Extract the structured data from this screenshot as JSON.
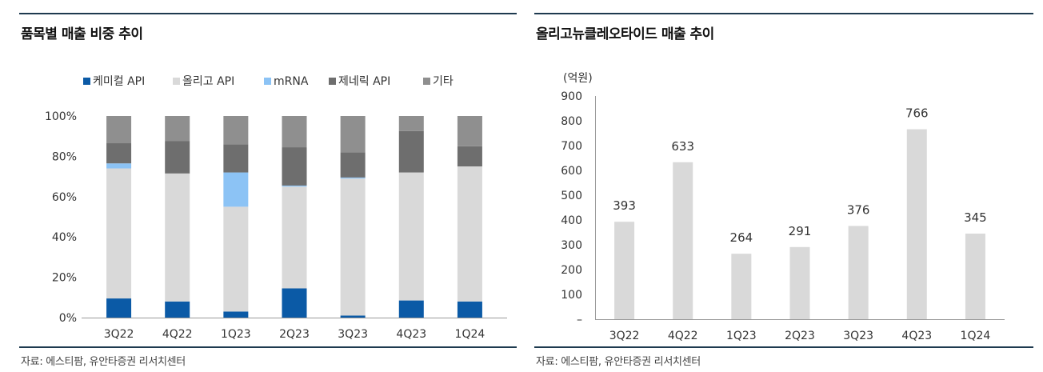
{
  "left": {
    "title": "품목별 매출 비중 추이",
    "source": "자료: 에스티팜, 유안타증권 리서치센터"
  },
  "right": {
    "title": "올리고뉴클레오타이드 매출 추이",
    "source": "자료: 에스티팜, 유안타증권 리서치센터"
  },
  "colors": {
    "rule": "#1e3a4f",
    "chemical": "#0b5aa6",
    "oligo": "#d9d9d9",
    "mrna": "#8cc3f5",
    "generic": "#6e6e6e",
    "other": "#8f8f8f",
    "bar": "#d9d9d9",
    "axis": "#9a9a9a"
  },
  "chart_data": [
    {
      "type": "bar",
      "stacked": true,
      "title": "품목별 매출 비중 추이",
      "categories": [
        "3Q22",
        "4Q22",
        "1Q23",
        "2Q23",
        "3Q23",
        "4Q23",
        "1Q24"
      ],
      "series": [
        {
          "name": "케미컬 API",
          "color": "#0b5aa6",
          "values": [
            9.5,
            8,
            3,
            14.5,
            1,
            8.5,
            8
          ]
        },
        {
          "name": "올리고 API",
          "color": "#d9d9d9",
          "values": [
            64.5,
            63.5,
            52,
            50.5,
            68,
            63.5,
            67
          ]
        },
        {
          "name": "mRNA",
          "color": "#8cc3f5",
          "values": [
            2.5,
            0,
            17,
            0.5,
            0.5,
            0,
            0
          ]
        },
        {
          "name": "제네릭 API",
          "color": "#6e6e6e",
          "values": [
            10,
            16,
            14,
            19,
            12.5,
            20.5,
            10
          ]
        },
        {
          "name": "기타",
          "color": "#8f8f8f",
          "values": [
            13.5,
            12.5,
            14,
            15.5,
            18,
            7.5,
            15
          ]
        }
      ],
      "yticks": [
        "0%",
        "20%",
        "40%",
        "60%",
        "80%",
        "100%"
      ],
      "ylim": [
        0,
        100
      ],
      "legend": "top"
    },
    {
      "type": "bar",
      "title": "올리고뉴클레오타이드 매출 추이",
      "unit_label": "(억원)",
      "categories": [
        "3Q22",
        "4Q22",
        "1Q23",
        "2Q23",
        "3Q23",
        "4Q23",
        "1Q24"
      ],
      "values": [
        393,
        633,
        264,
        291,
        376,
        766,
        345
      ],
      "labels": [
        "393",
        "633",
        "264",
        "291",
        "376",
        "766",
        "345"
      ],
      "yticks": [
        "–",
        "100",
        "200",
        "300",
        "400",
        "500",
        "600",
        "700",
        "800",
        "900"
      ],
      "ylim": [
        0,
        900
      ]
    }
  ]
}
